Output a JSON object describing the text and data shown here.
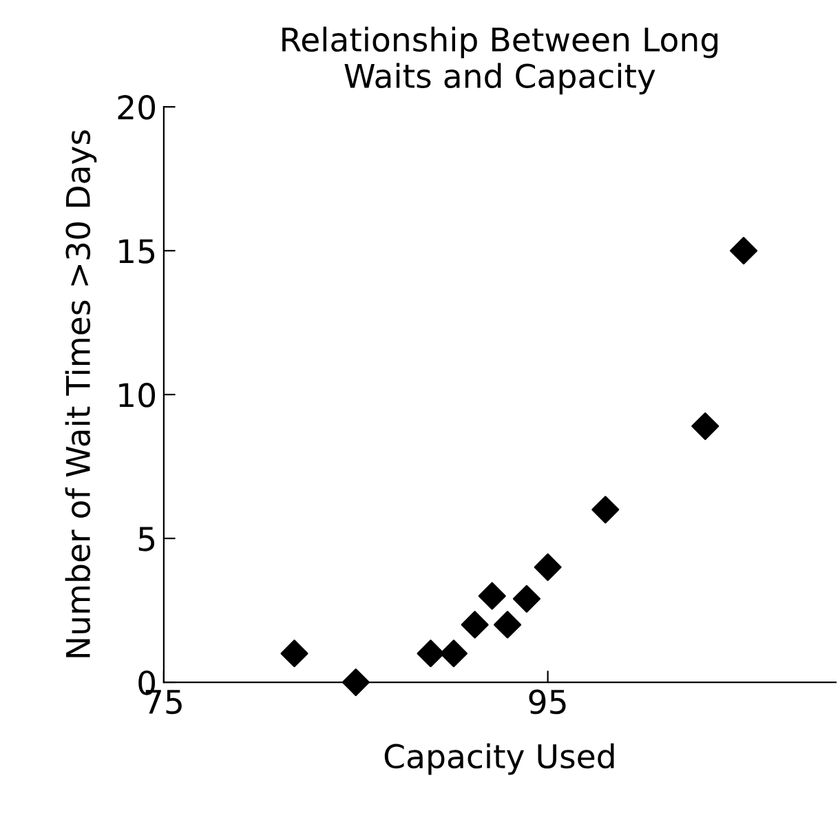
{
  "chart_data": {
    "type": "scatter",
    "title": "Relationship Between Long\nWaits and Capacity",
    "xlabel": "Capacity Used",
    "ylabel": "Number of Wait Times >30 Days",
    "x": [
      81.8,
      85.0,
      88.9,
      90.1,
      91.2,
      92.1,
      92.9,
      93.9,
      95.0,
      98.0,
      103.2,
      105.2
    ],
    "values": [
      1,
      0,
      1,
      1,
      2,
      3,
      2,
      2.9,
      4,
      6,
      8.9,
      15
    ],
    "color": "#000000",
    "marker": "diamond",
    "xlim": [
      75,
      110
    ],
    "xticks": [
      75,
      95
    ],
    "ylim": [
      0,
      20
    ],
    "yticks": [
      0,
      5,
      10,
      15,
      20
    ],
    "grid": false,
    "legend": false
  }
}
